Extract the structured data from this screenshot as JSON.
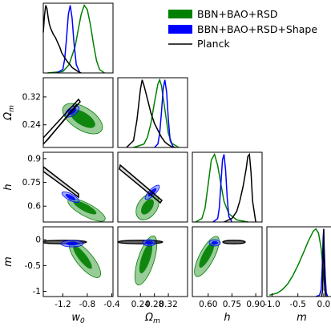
{
  "chart_data": {
    "type": "corner",
    "parameters": [
      {
        "key": "w0",
        "label_base": "w",
        "label_sub": "0",
        "range": [
          -1.52,
          -0.38
        ],
        "ticks": [
          "-1.2",
          "-0.8",
          "-0.4"
        ],
        "tick_values": [
          -1.2,
          -0.8,
          -0.4
        ]
      },
      {
        "key": "Om",
        "label_base": "Ω",
        "label_sub": "m",
        "range": [
          0.175,
          0.375
        ],
        "ticks": [
          "0.24",
          "0.32"
        ],
        "tick_values": [
          0.24,
          0.32
        ],
        "bottom_ticks": [
          "0.24",
          "0.28",
          "0.32"
        ],
        "bottom_tick_values": [
          0.24,
          0.28,
          0.32
        ]
      },
      {
        "key": "h",
        "label_base": "h",
        "label_sub": "",
        "range": [
          0.5,
          0.94
        ],
        "ticks": [
          "0.9",
          "0.75",
          "0.6"
        ],
        "tick_values": [
          0.9,
          0.75,
          0.6
        ],
        "bottom_ticks": [
          "0.60",
          "0.75",
          "0.90"
        ],
        "bottom_tick_values": [
          0.6,
          0.75,
          0.9
        ]
      },
      {
        "key": "m",
        "label_base": "m",
        "label_sub": "",
        "range": [
          -1.1,
          0.25
        ],
        "ticks": [
          "0",
          "-0.5",
          "-1"
        ],
        "tick_values": [
          0,
          -0.5,
          -1
        ],
        "bottom_ticks": [
          "-1.0",
          "-0.5",
          "0.0"
        ],
        "bottom_tick_values": [
          -1.0,
          -0.5,
          0.0
        ]
      }
    ],
    "series": [
      {
        "name": "BBN+BAO+RSD",
        "color": "#008000",
        "fill": "#008000",
        "marginals": {
          "w0": {
            "x": [
              -1.45,
              -1.2,
              -1.1,
              -1.0,
              -0.95,
              -0.9,
              -0.85,
              -0.8,
              -0.75,
              -0.7,
              -0.65,
              -0.6,
              -0.52
            ],
            "y": [
              0,
              0.02,
              0.12,
              0.38,
              0.62,
              0.85,
              0.98,
              0.92,
              0.7,
              0.42,
              0.18,
              0.05,
              0
            ]
          },
          "Om": {
            "x": [
              0.22,
              0.25,
              0.26,
              0.27,
              0.28,
              0.29,
              0.295,
              0.3,
              0.31,
              0.32,
              0.33,
              0.35
            ],
            "y": [
              0,
              0.05,
              0.15,
              0.35,
              0.65,
              0.92,
              0.98,
              0.9,
              0.55,
              0.2,
              0.06,
              0
            ]
          },
          "h": {
            "x": [
              0.52,
              0.56,
              0.58,
              0.6,
              0.62,
              0.64,
              0.66,
              0.68,
              0.7,
              0.73,
              0.78,
              0.85
            ],
            "y": [
              0,
              0.05,
              0.2,
              0.55,
              0.9,
              0.98,
              0.82,
              0.55,
              0.3,
              0.12,
              0.03,
              0
            ]
          },
          "m": {
            "x": [
              -1.05,
              -0.9,
              -0.8,
              -0.7,
              -0.6,
              -0.5,
              -0.4,
              -0.3,
              -0.2,
              -0.15,
              -0.1,
              -0.05,
              0.0,
              0.03,
              0.06
            ],
            "y": [
              0.02,
              0.05,
              0.1,
              0.18,
              0.3,
              0.45,
              0.62,
              0.8,
              0.95,
              0.98,
              0.92,
              0.7,
              0.3,
              0.08,
              0
            ]
          }
        }
      },
      {
        "name": "BBN+BAO+RSD+Shape",
        "color": "#0000ff",
        "fill": "#0000ff",
        "marginals": {
          "w0": {
            "x": [
              -1.3,
              -1.2,
              -1.17,
              -1.14,
              -1.11,
              -1.08,
              -1.05,
              -1.02,
              -0.98,
              -0.92
            ],
            "y": [
              0,
              0.05,
              0.2,
              0.5,
              0.85,
              0.98,
              0.8,
              0.45,
              0.12,
              0
            ]
          },
          "Om": {
            "x": [
              0.28,
              0.29,
              0.295,
              0.3,
              0.305,
              0.31,
              0.315,
              0.32,
              0.325,
              0.335
            ],
            "y": [
              0,
              0.05,
              0.2,
              0.5,
              0.85,
              0.98,
              0.8,
              0.4,
              0.1,
              0
            ]
          },
          "h": {
            "x": [
              0.63,
              0.66,
              0.67,
              0.68,
              0.69,
              0.7,
              0.71,
              0.72,
              0.73,
              0.75
            ],
            "y": [
              0,
              0.05,
              0.2,
              0.55,
              0.9,
              0.98,
              0.75,
              0.35,
              0.08,
              0
            ]
          },
          "m": {
            "x": [
              -0.15,
              -0.08,
              -0.05,
              -0.03,
              -0.01,
              0.0,
              0.01,
              0.03,
              0.05,
              0.08
            ],
            "y": [
              0,
              0.02,
              0.1,
              0.4,
              0.85,
              0.98,
              0.7,
              0.3,
              0.05,
              0
            ]
          }
        }
      },
      {
        "name": "Planck",
        "color": "#000000",
        "fill": "#000000",
        "marginals": {
          "w0": {
            "x": [
              -1.52,
              -1.5,
              -1.48,
              -1.46,
              -1.44,
              -1.42,
              -1.4,
              -1.38,
              -1.36,
              -1.34,
              -1.32,
              -1.3,
              -1.28,
              -1.25,
              -1.22,
              -1.18,
              -1.15,
              -1.12,
              -1.08,
              -1.05,
              -1.0,
              -0.95,
              -0.9
            ],
            "y": [
              0.6,
              0.85,
              1.0,
              0.95,
              0.82,
              0.72,
              0.66,
              0.62,
              0.58,
              0.55,
              0.52,
              0.48,
              0.44,
              0.38,
              0.3,
              0.24,
              0.2,
              0.16,
              0.12,
              0.08,
              0.05,
              0.02,
              0
            ]
          },
          "Om": {
            "x": [
              0.2,
              0.22,
              0.23,
              0.24,
              0.245,
              0.25,
              0.26,
              0.27,
              0.28,
              0.29,
              0.3,
              0.31,
              0.32,
              0.33,
              0.34
            ],
            "y": [
              0,
              0.1,
              0.4,
              0.85,
              0.98,
              0.9,
              0.7,
              0.5,
              0.35,
              0.25,
              0.15,
              0.08,
              0.04,
              0.01,
              0
            ]
          },
          "h": {
            "x": [
              0.7,
              0.75,
              0.78,
              0.8,
              0.82,
              0.84,
              0.85,
              0.86,
              0.87,
              0.88,
              0.9
            ],
            "y": [
              0,
              0.05,
              0.15,
              0.3,
              0.5,
              0.75,
              0.92,
              0.95,
              0.7,
              0.3,
              0
            ]
          },
          "m": {
            "x": [
              -0.04,
              -0.02,
              -0.01,
              0.0,
              0.01,
              0.02,
              0.04
            ],
            "y": [
              0,
              0.1,
              0.6,
              1.0,
              0.6,
              0.1,
              0
            ]
          }
        }
      }
    ],
    "legend": {
      "placement": "top-right",
      "entries": [
        "BBN+BAO+RSD",
        "BBN+BAO+RSD+Shape",
        "Planck"
      ]
    }
  }
}
